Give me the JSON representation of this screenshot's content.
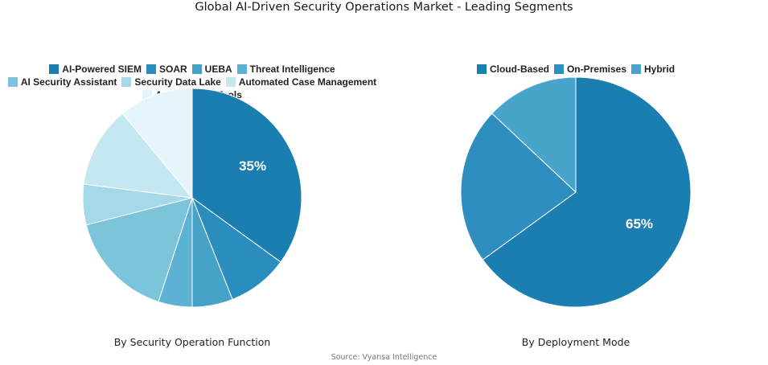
{
  "title": "Global AI-Driven Security Operations Market - Leading Segments",
  "source": "Source: Vyansa Intelligence",
  "chart_data": [
    {
      "type": "pie",
      "subtitle": "By Security Operation Function",
      "legend_position": "top",
      "categories": [
        "AI-Powered SIEM",
        "SOAR",
        "UEBA",
        "Threat Intelligence",
        "AI Security Assistant",
        "Security Data Lake",
        "Automated Case Management",
        "Agentic SOC Tools"
      ],
      "values": [
        35,
        9,
        6,
        5,
        16,
        6,
        12,
        11
      ],
      "colors": [
        "#1b7eb0",
        "#2b8dbd",
        "#46a3c8",
        "#5db2d3",
        "#7bc4dc",
        "#a5d8e8",
        "#c4e8f1",
        "#e6f5fa"
      ],
      "data_labels": [
        "35%",
        "",
        "",
        "",
        "",
        "",
        "",
        ""
      ]
    },
    {
      "type": "pie",
      "subtitle": "By Deployment Mode",
      "legend_position": "top",
      "categories": [
        "Cloud-Based",
        "On-Premises",
        "Hybrid"
      ],
      "values": [
        65,
        22,
        13
      ],
      "colors": [
        "#1b7eb0",
        "#2d8ebf",
        "#48a4ca"
      ],
      "data_labels": [
        "65%",
        "",
        ""
      ]
    }
  ]
}
